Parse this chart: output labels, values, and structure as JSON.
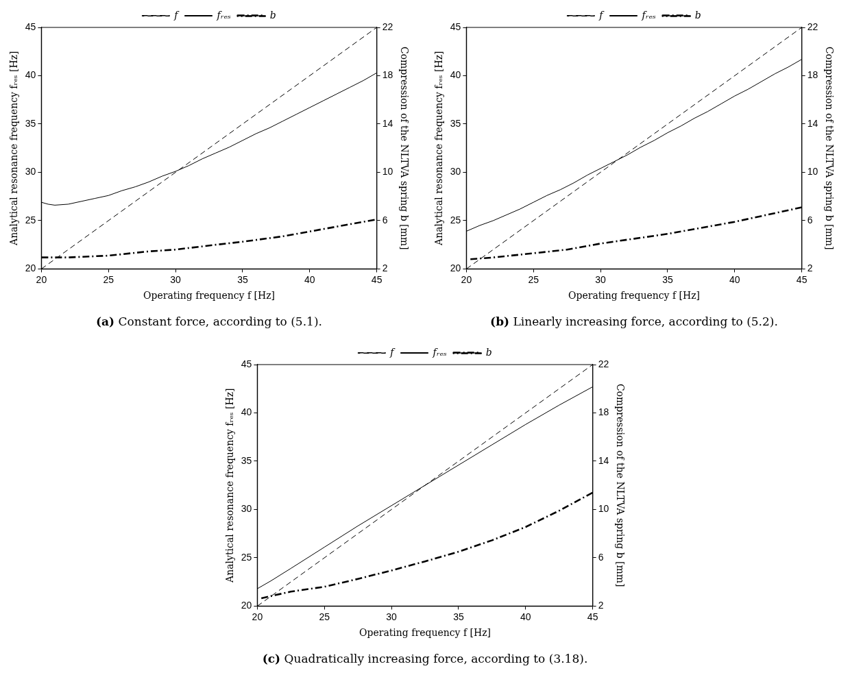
{
  "chart_data": [
    {
      "type": "line",
      "title": "(a) Constant force, according to (5.1).",
      "xlabel": "Operating frequency f [Hz]",
      "ylabel": "Analytical resonance frequency fᵣₑₛ [Hz]",
      "y2label": "Compression of the NLTVA spring b [mm]",
      "xlim": [
        20,
        45
      ],
      "xticks": [
        20,
        25,
        30,
        35,
        40,
        45
      ],
      "ylim": [
        20,
        45
      ],
      "yticks": [
        20,
        25,
        30,
        35,
        40,
        45
      ],
      "y2lim": [
        2,
        22
      ],
      "y2ticks": [
        2,
        6,
        10,
        14,
        18,
        22
      ],
      "legend": "top",
      "grid": false,
      "marker": "none",
      "series": [
        {
          "name": "f",
          "color": "#000000",
          "line_style": "dashed",
          "x": [
            20,
            45
          ],
          "values": [
            20,
            45
          ]
        },
        {
          "name": "fᵣₑₛ",
          "color": "#000000",
          "line_style": "solid",
          "x": [
            20,
            20.5,
            21,
            22,
            23,
            24,
            25,
            26,
            27,
            28,
            29,
            30,
            31,
            32,
            33,
            34,
            35,
            36,
            37,
            38,
            39,
            40,
            41,
            42,
            43,
            44,
            45
          ],
          "values": [
            26.9,
            26.7,
            26.6,
            26.7,
            27.0,
            27.3,
            27.6,
            28.1,
            28.5,
            29.0,
            29.6,
            30.1,
            30.7,
            31.4,
            32.0,
            32.6,
            33.3,
            34.0,
            34.6,
            35.3,
            36.0,
            36.7,
            37.4,
            38.1,
            38.8,
            39.5,
            40.3
          ]
        },
        {
          "name": "b",
          "color": "#000000",
          "line_style": "dashdot",
          "axis": "y2",
          "x": [
            20,
            22,
            25,
            28,
            30,
            33,
            35,
            38,
            40,
            42,
            45
          ],
          "values": [
            2.95,
            2.95,
            3.1,
            3.45,
            3.6,
            4.0,
            4.25,
            4.7,
            5.1,
            5.5,
            6.1
          ]
        }
      ]
    },
    {
      "type": "line",
      "title": "(b) Linearly increasing force, according to (5.2).",
      "xlabel": "Operating frequency f [Hz]",
      "ylabel": "Analytical resonance frequency fᵣₑₛ [Hz]",
      "y2label": "Compression of the NLTVA spring b [mm]",
      "xlim": [
        20,
        45
      ],
      "xticks": [
        20,
        25,
        30,
        35,
        40,
        45
      ],
      "ylim": [
        20,
        45
      ],
      "yticks": [
        20,
        25,
        30,
        35,
        40,
        45
      ],
      "y2lim": [
        2,
        22
      ],
      "y2ticks": [
        2,
        6,
        10,
        14,
        18,
        22
      ],
      "legend": "top",
      "grid": false,
      "marker": "none",
      "series": [
        {
          "name": "f",
          "color": "#000000",
          "line_style": "dashed",
          "x": [
            20,
            45
          ],
          "values": [
            20,
            45
          ]
        },
        {
          "name": "fᵣₑₛ",
          "color": "#000000",
          "line_style": "solid",
          "x": [
            20,
            21,
            22,
            23,
            24,
            25,
            26,
            27,
            28,
            29,
            30,
            31,
            32,
            33,
            34,
            35,
            36,
            37,
            38,
            39,
            40,
            41,
            42,
            43,
            44,
            45
          ],
          "values": [
            23.9,
            24.5,
            25.0,
            25.6,
            26.2,
            26.9,
            27.6,
            28.2,
            28.9,
            29.7,
            30.4,
            31.1,
            31.8,
            32.6,
            33.3,
            34.1,
            34.8,
            35.6,
            36.3,
            37.1,
            37.9,
            38.6,
            39.4,
            40.2,
            40.9,
            41.7
          ]
        },
        {
          "name": "b",
          "color": "#000000",
          "line_style": "dashdot",
          "axis": "y2",
          "x": [
            20.3,
            22,
            25,
            27.5,
            30,
            32.5,
            35,
            37.5,
            40,
            42.5,
            45
          ],
          "values": [
            2.8,
            2.95,
            3.3,
            3.6,
            4.1,
            4.5,
            4.9,
            5.4,
            5.9,
            6.5,
            7.1
          ]
        }
      ]
    },
    {
      "type": "line",
      "title": "(c) Quadratically increasing force, according to (3.18).",
      "xlabel": "Operating frequency f [Hz]",
      "ylabel": "Analytical resonance frequency fᵣₑₛ [Hz]",
      "y2label": "Compression of the NLTVA spring b [mm]",
      "xlim": [
        20,
        45
      ],
      "xticks": [
        20,
        25,
        30,
        35,
        40,
        45
      ],
      "ylim": [
        20,
        45
      ],
      "yticks": [
        20,
        25,
        30,
        35,
        40,
        45
      ],
      "y2lim": [
        2,
        22
      ],
      "y2ticks": [
        2,
        6,
        10,
        14,
        18,
        22
      ],
      "legend": "top",
      "grid": false,
      "marker": "none",
      "series": [
        {
          "name": "f",
          "color": "#000000",
          "line_style": "dashed",
          "x": [
            20,
            45
          ],
          "values": [
            20,
            45
          ]
        },
        {
          "name": "fᵣₑₛ",
          "color": "#000000",
          "line_style": "solid",
          "x": [
            20,
            21,
            22.5,
            25,
            27.5,
            30,
            32.5,
            35,
            37.5,
            40,
            42.5,
            45
          ],
          "values": [
            21.8,
            22.6,
            23.9,
            26.1,
            28.3,
            30.4,
            32.5,
            34.6,
            36.7,
            38.8,
            40.8,
            42.7
          ]
        },
        {
          "name": "b",
          "color": "#000000",
          "line_style": "dashdot",
          "axis": "y2",
          "x": [
            20.3,
            22.5,
            25,
            27.5,
            30,
            32.5,
            35,
            37.5,
            40,
            42.5,
            45
          ],
          "values": [
            2.65,
            3.2,
            3.6,
            4.25,
            4.95,
            5.7,
            6.5,
            7.45,
            8.55,
            9.9,
            11.4
          ]
        }
      ]
    }
  ]
}
